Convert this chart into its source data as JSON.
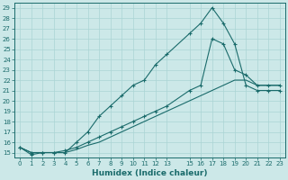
{
  "xlabel": "Humidex (Indice chaleur)",
  "bg_color": "#cce8e8",
  "line_color": "#1a6b6b",
  "grid_color": "#aad4d4",
  "xlim_min": -0.5,
  "xlim_max": 23.5,
  "ylim_min": 14.5,
  "ylim_max": 29.5,
  "xticks": [
    0,
    1,
    2,
    3,
    4,
    5,
    6,
    7,
    8,
    9,
    10,
    11,
    12,
    13,
    15,
    16,
    17,
    18,
    19,
    20,
    21,
    22,
    23
  ],
  "yticks": [
    15,
    16,
    17,
    18,
    19,
    20,
    21,
    22,
    23,
    24,
    25,
    26,
    27,
    28,
    29
  ],
  "line1_x": [
    0,
    1,
    2,
    3,
    4,
    5,
    6,
    7,
    8,
    9,
    10,
    11,
    12,
    13,
    15,
    16,
    17,
    18,
    19,
    20,
    21,
    22,
    23
  ],
  "line1_y": [
    15.5,
    14.8,
    15.0,
    15.0,
    15.0,
    16.0,
    17.0,
    18.5,
    19.5,
    20.5,
    21.5,
    22.0,
    23.5,
    24.5,
    26.5,
    27.5,
    29.0,
    27.5,
    25.5,
    21.5,
    21.0,
    21.0,
    21.0
  ],
  "line2_x": [
    0,
    1,
    2,
    3,
    4,
    5,
    6,
    7,
    8,
    9,
    10,
    11,
    12,
    13,
    15,
    16,
    17,
    18,
    19,
    20,
    21,
    22,
    23
  ],
  "line2_y": [
    15.5,
    15.0,
    15.0,
    15.0,
    15.0,
    15.3,
    15.7,
    16.0,
    16.5,
    17.0,
    17.5,
    18.0,
    18.5,
    19.0,
    20.0,
    20.5,
    21.0,
    21.5,
    22.0,
    22.0,
    21.5,
    21.5,
    21.5
  ],
  "line3_x": [
    0,
    1,
    2,
    3,
    4,
    5,
    6,
    7,
    8,
    9,
    10,
    11,
    12,
    13,
    15,
    16,
    17,
    18,
    19,
    20,
    21,
    22,
    23
  ],
  "line3_y": [
    15.5,
    15.0,
    15.0,
    15.0,
    15.2,
    15.5,
    16.0,
    16.5,
    17.0,
    17.5,
    18.0,
    18.5,
    19.0,
    19.5,
    21.0,
    21.5,
    26.0,
    25.5,
    23.0,
    22.5,
    21.5,
    21.5,
    21.5
  ]
}
